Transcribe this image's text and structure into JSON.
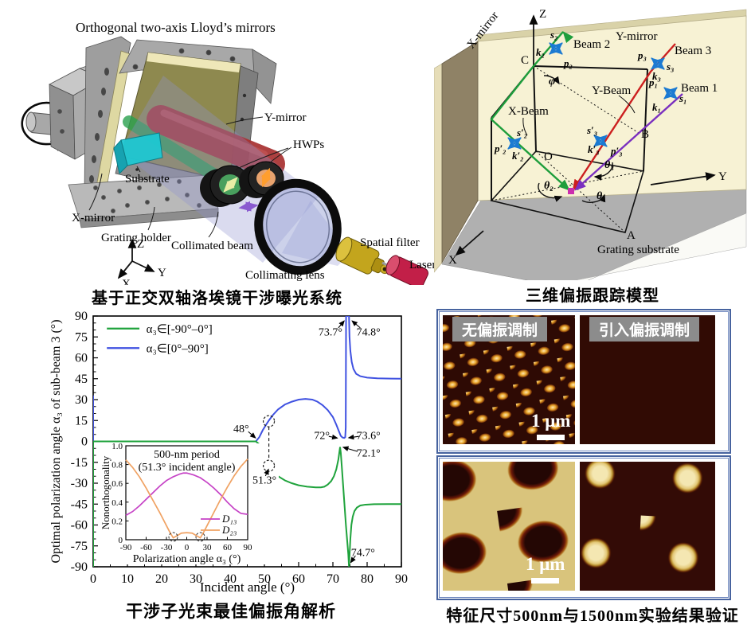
{
  "panels": {
    "apparatus": {
      "title": "Orthogonal two-axis Lloyd’s mirrors",
      "caption": "基于正交双轴洛埃镜干涉曝光系统",
      "labels": {
        "y_mirror": "Y-mirror",
        "hwps": "HWPs",
        "substrate": "Substrate",
        "x_mirror": "X-mirror",
        "grating_holder": "Grating holder",
        "collimated_beam": "Collimated beam",
        "collimating_lens": "Collimating lens",
        "spatial_filter": "Spatial filter",
        "laser": "Laser",
        "axis_z": "Z",
        "axis_y": "Y",
        "axis_x": "X"
      }
    },
    "model": {
      "caption": "三维偏振跟踪模型",
      "labels": {
        "x_mirror": "X-mirror",
        "y_mirror": "Y-mirror",
        "beam1": "Beam 1",
        "beam2": "Beam 2",
        "beam3": "Beam 3",
        "x_beam": "X-Beam",
        "y_beam": "Y-Beam",
        "grating_substrate": "Grating substrate",
        "phi": "φ",
        "theta1": "θ₁",
        "theta2": "θ₂",
        "theta3": "θ₃",
        "c": "C",
        "o": "O",
        "b": "B",
        "a": "A",
        "s1": "s₁",
        "k1": "k₁",
        "p1": "p₁",
        "s2": "s₂",
        "k2": "k₂",
        "p2": "p₂",
        "s3": "s₃",
        "k3": "k₃",
        "p3": "p₃",
        "s2p": "s′₂",
        "k2p": "k′₂",
        "p2p": "p′₂",
        "s3p": "s′₃",
        "k3p": "k′₃",
        "p3p": "p′₃",
        "axis_z": "Z",
        "axis_y": "Y",
        "axis_x": "X"
      }
    },
    "chart": {
      "caption": "干涉子光束最佳偏振角解析"
    },
    "afm": {
      "label_left": "无偏振调制",
      "label_right": "引入偏振调制",
      "scale_bar": "1 μm",
      "caption": "特征尺寸500nm与1500nm实验结果验证"
    }
  },
  "chart_data": {
    "type": "line",
    "xlabel": "Incident angle (°)",
    "ylabel": "Optimal polarization angle α₃ of sub-beam 3 (°)",
    "xlim": [
      0,
      90
    ],
    "ylim": [
      -90,
      90
    ],
    "xticks": [
      0,
      10,
      20,
      30,
      40,
      50,
      60,
      70,
      80,
      90
    ],
    "yticks": [
      -90,
      -75,
      -60,
      -45,
      -30,
      -15,
      0,
      15,
      30,
      45,
      60,
      75,
      90
    ],
    "grid": false,
    "legend_position": "top-left",
    "series": [
      {
        "name": "α₃∈[0°–90°]",
        "color": "#3f51e1",
        "points": [
          [
            0,
            33
          ],
          [
            0,
            0
          ],
          [
            47.5,
            0
          ],
          [
            48.5,
            3
          ],
          [
            49.5,
            8
          ],
          [
            50.5,
            12
          ],
          [
            51.3,
            15
          ],
          [
            52.5,
            19
          ],
          [
            54,
            23
          ],
          [
            56,
            26.5
          ],
          [
            58,
            28.5
          ],
          [
            60,
            30
          ],
          [
            62,
            30.5
          ],
          [
            64,
            30
          ],
          [
            65.5,
            28.5
          ],
          [
            67,
            26
          ],
          [
            68.5,
            22.5
          ],
          [
            70,
            17.5
          ],
          [
            71,
            12
          ],
          [
            71.8,
            7
          ],
          [
            72.3,
            4
          ],
          [
            72.8,
            2.8
          ],
          [
            73.3,
            2.5
          ],
          [
            73.6,
            3
          ],
          [
            73.75,
            10
          ],
          [
            73.85,
            90
          ],
          [
            74.7,
            90
          ],
          [
            74.85,
            75
          ],
          [
            75.1,
            65
          ],
          [
            75.5,
            57
          ],
          [
            76,
            52
          ],
          [
            76.8,
            48.5
          ],
          [
            78,
            46.8
          ],
          [
            80,
            45.8
          ],
          [
            83,
            45.3
          ],
          [
            87,
            45.1
          ],
          [
            90,
            45
          ]
        ]
      },
      {
        "name": "α₃∈[-90°–0°]",
        "color": "#1fa33c",
        "points": [
          [
            0,
            -90
          ],
          [
            0,
            0
          ],
          [
            47.5,
            0
          ],
          [
            48.5,
            -2
          ],
          [
            49.5,
            -7
          ],
          [
            50.5,
            -12
          ],
          [
            51.3,
            -17
          ],
          [
            52.5,
            -21
          ],
          [
            54,
            -25
          ],
          [
            56,
            -28
          ],
          [
            58,
            -30
          ],
          [
            60,
            -31.5
          ],
          [
            62.5,
            -32.5
          ],
          [
            65,
            -33
          ],
          [
            66.5,
            -33
          ],
          [
            67.5,
            -32.5
          ],
          [
            68.5,
            -31
          ],
          [
            69.5,
            -28.5
          ],
          [
            70.3,
            -25
          ],
          [
            71,
            -20
          ],
          [
            71.6,
            -13
          ],
          [
            72.1,
            -4
          ],
          [
            72.3,
            -8
          ],
          [
            72.6,
            -18
          ],
          [
            73,
            -32
          ],
          [
            73.4,
            -46
          ],
          [
            73.8,
            -60
          ],
          [
            74.2,
            -72
          ],
          [
            74.5,
            -81
          ],
          [
            74.7,
            -90
          ],
          [
            74.9,
            -80
          ],
          [
            75.1,
            -70
          ],
          [
            75.4,
            -60
          ],
          [
            75.8,
            -54
          ],
          [
            76.3,
            -50
          ],
          [
            77,
            -47.5
          ],
          [
            78,
            -46
          ],
          [
            79.5,
            -45.4
          ],
          [
            82,
            -45.1
          ],
          [
            86,
            -45
          ],
          [
            90,
            -45
          ]
        ]
      }
    ],
    "legend_order": [
      "α₃∈[-90°–0°]",
      "α₃∈[0°–90°]"
    ],
    "annotations": [
      {
        "text": "48°",
        "tx": 43.2,
        "ty": 9.5,
        "x1": 45.3,
        "y1": 7.0,
        "x2": 47.4,
        "y2": 2.5
      },
      {
        "text": "73.7°",
        "tx": 69.3,
        "ty": 79,
        "x1": 71.6,
        "y1": 81.5,
        "x2": 73.3,
        "y2": 86.5
      },
      {
        "text": "74.8°",
        "tx": 80.4,
        "ty": 79,
        "x1": 78.0,
        "y1": 81.5,
        "x2": 75.6,
        "y2": 86.5
      },
      {
        "text": "72°",
        "tx": 66.8,
        "ty": 4.5,
        "x1": 68.8,
        "y1": 3.6,
        "x2": 71.3,
        "y2": 2.4
      },
      {
        "text": "73.6°",
        "tx": 80.4,
        "ty": 4.5,
        "x1": 77.6,
        "y1": 3.6,
        "x2": 74.6,
        "y2": 2.6
      },
      {
        "text": "72.1°",
        "tx": 80.4,
        "ty": -8,
        "x1": 77.2,
        "y1": -7.2,
        "x2": 73.0,
        "y2": -4.2
      },
      {
        "text": "51.3°",
        "tx": 50.0,
        "ty": -27.5,
        "x1": 50.3,
        "y1": -24.8,
        "x2": 51.2,
        "y2": -20.0
      },
      {
        "text": "74.7°",
        "tx": 78.8,
        "ty": -79.5,
        "x1": 76.6,
        "y1": -82,
        "x2": 75.2,
        "y2": -87
      }
    ],
    "markers": {
      "dash_x": 51.3,
      "circles": [
        [
          51.3,
          14.5
        ],
        [
          51.3,
          -17.5
        ]
      ]
    },
    "inset": {
      "title_line1": "500-nm period",
      "title_line2": "(51.3° incident angle)",
      "xlabel": "Polarization angle α₃ (°)",
      "ylabel": "Nonorthogonality",
      "xlim": [
        -90,
        90
      ],
      "ylim": [
        0,
        1
      ],
      "xticks": [
        -90,
        -60,
        -30,
        0,
        30,
        60,
        90
      ],
      "yticks": [
        0,
        0.2,
        0.4,
        0.6,
        0.8,
        1.0
      ],
      "series": [
        {
          "name": "D₁₃",
          "color": "#c643c6",
          "points": [
            [
              -90,
              0.26
            ],
            [
              -80,
              0.3
            ],
            [
              -70,
              0.36
            ],
            [
              -60,
              0.43
            ],
            [
              -50,
              0.5
            ],
            [
              -40,
              0.57
            ],
            [
              -30,
              0.63
            ],
            [
              -20,
              0.67
            ],
            [
              -10,
              0.7
            ],
            [
              -5,
              0.71
            ],
            [
              0,
              0.71
            ],
            [
              10,
              0.69
            ],
            [
              20,
              0.66
            ],
            [
              30,
              0.61
            ],
            [
              40,
              0.55
            ],
            [
              50,
              0.48
            ],
            [
              60,
              0.4
            ],
            [
              70,
              0.33
            ],
            [
              80,
              0.28
            ],
            [
              90,
              0.27
            ]
          ]
        },
        {
          "name": "D₂₃",
          "color": "#f0a263",
          "points": [
            [
              -90,
              0.85
            ],
            [
              -80,
              0.77
            ],
            [
              -70,
              0.67
            ],
            [
              -60,
              0.55
            ],
            [
              -50,
              0.42
            ],
            [
              -40,
              0.29
            ],
            [
              -30,
              0.15
            ],
            [
              -25,
              0.08
            ],
            [
              -20,
              0.02
            ],
            [
              -15,
              0.04
            ],
            [
              -8,
              0.07
            ],
            [
              0,
              0.075
            ],
            [
              8,
              0.07
            ],
            [
              15,
              0.04
            ],
            [
              20,
              0.02
            ],
            [
              25,
              0.08
            ],
            [
              30,
              0.15
            ],
            [
              40,
              0.29
            ],
            [
              50,
              0.43
            ],
            [
              60,
              0.56
            ],
            [
              70,
              0.68
            ],
            [
              80,
              0.78
            ],
            [
              90,
              0.86
            ]
          ]
        }
      ],
      "circles": [
        [
          -20,
          0.03
        ],
        [
          20,
          0.03
        ]
      ]
    }
  }
}
